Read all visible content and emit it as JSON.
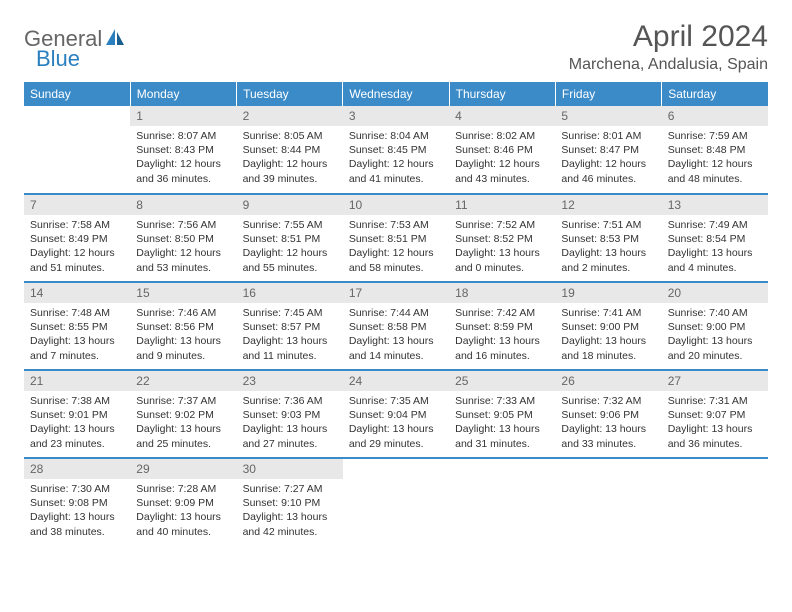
{
  "logo": {
    "text_gray": "General",
    "text_blue": "Blue",
    "icon_color": "#2a7fbf"
  },
  "title": "April 2024",
  "location": "Marchena, Andalusia, Spain",
  "colors": {
    "header_bg": "#3b8bc9",
    "header_text": "#ffffff",
    "daynum_bg": "#e8e8e8",
    "daynum_text": "#666666",
    "body_text": "#333333",
    "border": "#3b8bc9"
  },
  "weekdays": [
    "Sunday",
    "Monday",
    "Tuesday",
    "Wednesday",
    "Thursday",
    "Friday",
    "Saturday"
  ],
  "weeks": [
    [
      {
        "n": "",
        "sr": "",
        "ss": "",
        "dl": ""
      },
      {
        "n": "1",
        "sr": "Sunrise: 8:07 AM",
        "ss": "Sunset: 8:43 PM",
        "dl": "Daylight: 12 hours and 36 minutes."
      },
      {
        "n": "2",
        "sr": "Sunrise: 8:05 AM",
        "ss": "Sunset: 8:44 PM",
        "dl": "Daylight: 12 hours and 39 minutes."
      },
      {
        "n": "3",
        "sr": "Sunrise: 8:04 AM",
        "ss": "Sunset: 8:45 PM",
        "dl": "Daylight: 12 hours and 41 minutes."
      },
      {
        "n": "4",
        "sr": "Sunrise: 8:02 AM",
        "ss": "Sunset: 8:46 PM",
        "dl": "Daylight: 12 hours and 43 minutes."
      },
      {
        "n": "5",
        "sr": "Sunrise: 8:01 AM",
        "ss": "Sunset: 8:47 PM",
        "dl": "Daylight: 12 hours and 46 minutes."
      },
      {
        "n": "6",
        "sr": "Sunrise: 7:59 AM",
        "ss": "Sunset: 8:48 PM",
        "dl": "Daylight: 12 hours and 48 minutes."
      }
    ],
    [
      {
        "n": "7",
        "sr": "Sunrise: 7:58 AM",
        "ss": "Sunset: 8:49 PM",
        "dl": "Daylight: 12 hours and 51 minutes."
      },
      {
        "n": "8",
        "sr": "Sunrise: 7:56 AM",
        "ss": "Sunset: 8:50 PM",
        "dl": "Daylight: 12 hours and 53 minutes."
      },
      {
        "n": "9",
        "sr": "Sunrise: 7:55 AM",
        "ss": "Sunset: 8:51 PM",
        "dl": "Daylight: 12 hours and 55 minutes."
      },
      {
        "n": "10",
        "sr": "Sunrise: 7:53 AM",
        "ss": "Sunset: 8:51 PM",
        "dl": "Daylight: 12 hours and 58 minutes."
      },
      {
        "n": "11",
        "sr": "Sunrise: 7:52 AM",
        "ss": "Sunset: 8:52 PM",
        "dl": "Daylight: 13 hours and 0 minutes."
      },
      {
        "n": "12",
        "sr": "Sunrise: 7:51 AM",
        "ss": "Sunset: 8:53 PM",
        "dl": "Daylight: 13 hours and 2 minutes."
      },
      {
        "n": "13",
        "sr": "Sunrise: 7:49 AM",
        "ss": "Sunset: 8:54 PM",
        "dl": "Daylight: 13 hours and 4 minutes."
      }
    ],
    [
      {
        "n": "14",
        "sr": "Sunrise: 7:48 AM",
        "ss": "Sunset: 8:55 PM",
        "dl": "Daylight: 13 hours and 7 minutes."
      },
      {
        "n": "15",
        "sr": "Sunrise: 7:46 AM",
        "ss": "Sunset: 8:56 PM",
        "dl": "Daylight: 13 hours and 9 minutes."
      },
      {
        "n": "16",
        "sr": "Sunrise: 7:45 AM",
        "ss": "Sunset: 8:57 PM",
        "dl": "Daylight: 13 hours and 11 minutes."
      },
      {
        "n": "17",
        "sr": "Sunrise: 7:44 AM",
        "ss": "Sunset: 8:58 PM",
        "dl": "Daylight: 13 hours and 14 minutes."
      },
      {
        "n": "18",
        "sr": "Sunrise: 7:42 AM",
        "ss": "Sunset: 8:59 PM",
        "dl": "Daylight: 13 hours and 16 minutes."
      },
      {
        "n": "19",
        "sr": "Sunrise: 7:41 AM",
        "ss": "Sunset: 9:00 PM",
        "dl": "Daylight: 13 hours and 18 minutes."
      },
      {
        "n": "20",
        "sr": "Sunrise: 7:40 AM",
        "ss": "Sunset: 9:00 PM",
        "dl": "Daylight: 13 hours and 20 minutes."
      }
    ],
    [
      {
        "n": "21",
        "sr": "Sunrise: 7:38 AM",
        "ss": "Sunset: 9:01 PM",
        "dl": "Daylight: 13 hours and 23 minutes."
      },
      {
        "n": "22",
        "sr": "Sunrise: 7:37 AM",
        "ss": "Sunset: 9:02 PM",
        "dl": "Daylight: 13 hours and 25 minutes."
      },
      {
        "n": "23",
        "sr": "Sunrise: 7:36 AM",
        "ss": "Sunset: 9:03 PM",
        "dl": "Daylight: 13 hours and 27 minutes."
      },
      {
        "n": "24",
        "sr": "Sunrise: 7:35 AM",
        "ss": "Sunset: 9:04 PM",
        "dl": "Daylight: 13 hours and 29 minutes."
      },
      {
        "n": "25",
        "sr": "Sunrise: 7:33 AM",
        "ss": "Sunset: 9:05 PM",
        "dl": "Daylight: 13 hours and 31 minutes."
      },
      {
        "n": "26",
        "sr": "Sunrise: 7:32 AM",
        "ss": "Sunset: 9:06 PM",
        "dl": "Daylight: 13 hours and 33 minutes."
      },
      {
        "n": "27",
        "sr": "Sunrise: 7:31 AM",
        "ss": "Sunset: 9:07 PM",
        "dl": "Daylight: 13 hours and 36 minutes."
      }
    ],
    [
      {
        "n": "28",
        "sr": "Sunrise: 7:30 AM",
        "ss": "Sunset: 9:08 PM",
        "dl": "Daylight: 13 hours and 38 minutes."
      },
      {
        "n": "29",
        "sr": "Sunrise: 7:28 AM",
        "ss": "Sunset: 9:09 PM",
        "dl": "Daylight: 13 hours and 40 minutes."
      },
      {
        "n": "30",
        "sr": "Sunrise: 7:27 AM",
        "ss": "Sunset: 9:10 PM",
        "dl": "Daylight: 13 hours and 42 minutes."
      },
      {
        "n": "",
        "sr": "",
        "ss": "",
        "dl": ""
      },
      {
        "n": "",
        "sr": "",
        "ss": "",
        "dl": ""
      },
      {
        "n": "",
        "sr": "",
        "ss": "",
        "dl": ""
      },
      {
        "n": "",
        "sr": "",
        "ss": "",
        "dl": ""
      }
    ]
  ]
}
